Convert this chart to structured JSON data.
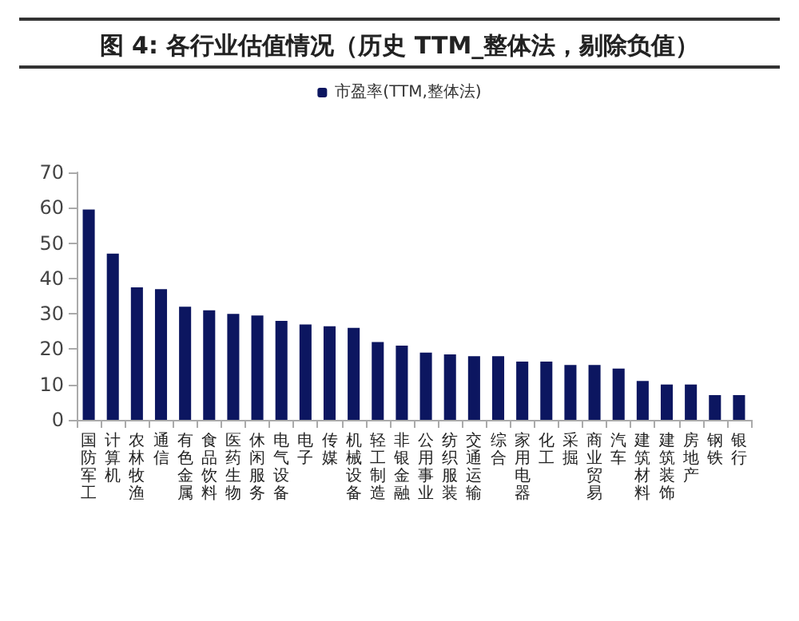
{
  "chart_data": {
    "type": "bar",
    "title": "图 4: 各行业估值情况（历史 TTM_整体法，剔除负值）",
    "categories": [
      "国防军工",
      "计算机",
      "农林牧渔",
      "通信",
      "有色金属",
      "食品饮料",
      "医药生物",
      "休闲服务",
      "电气设备",
      "电子",
      "传媒",
      "机械设备",
      "轻工制造",
      "非银金融",
      "公用事业",
      "纺织服装",
      "交通运输",
      "综合",
      "家用电器",
      "化工",
      "采掘",
      "商业贸易",
      "汽车",
      "建筑材料",
      "建筑装饰",
      "房地产",
      "钢铁",
      "银行"
    ],
    "series": [
      {
        "name": "市盈率(TTM,整体法)",
        "color": "#0c1660",
        "values": [
          59.5,
          47,
          37.5,
          37,
          32,
          31,
          30,
          29.5,
          28,
          27,
          26.5,
          26,
          22,
          21,
          19,
          18.5,
          18,
          18,
          16.5,
          16.5,
          15.5,
          15.5,
          14.5,
          11,
          10,
          10,
          7,
          7
        ]
      }
    ],
    "ylim": [
      0,
      70
    ],
    "yticks": [
      0,
      10,
      20,
      30,
      40,
      50,
      60,
      70
    ],
    "grid": false,
    "legend": "top"
  }
}
